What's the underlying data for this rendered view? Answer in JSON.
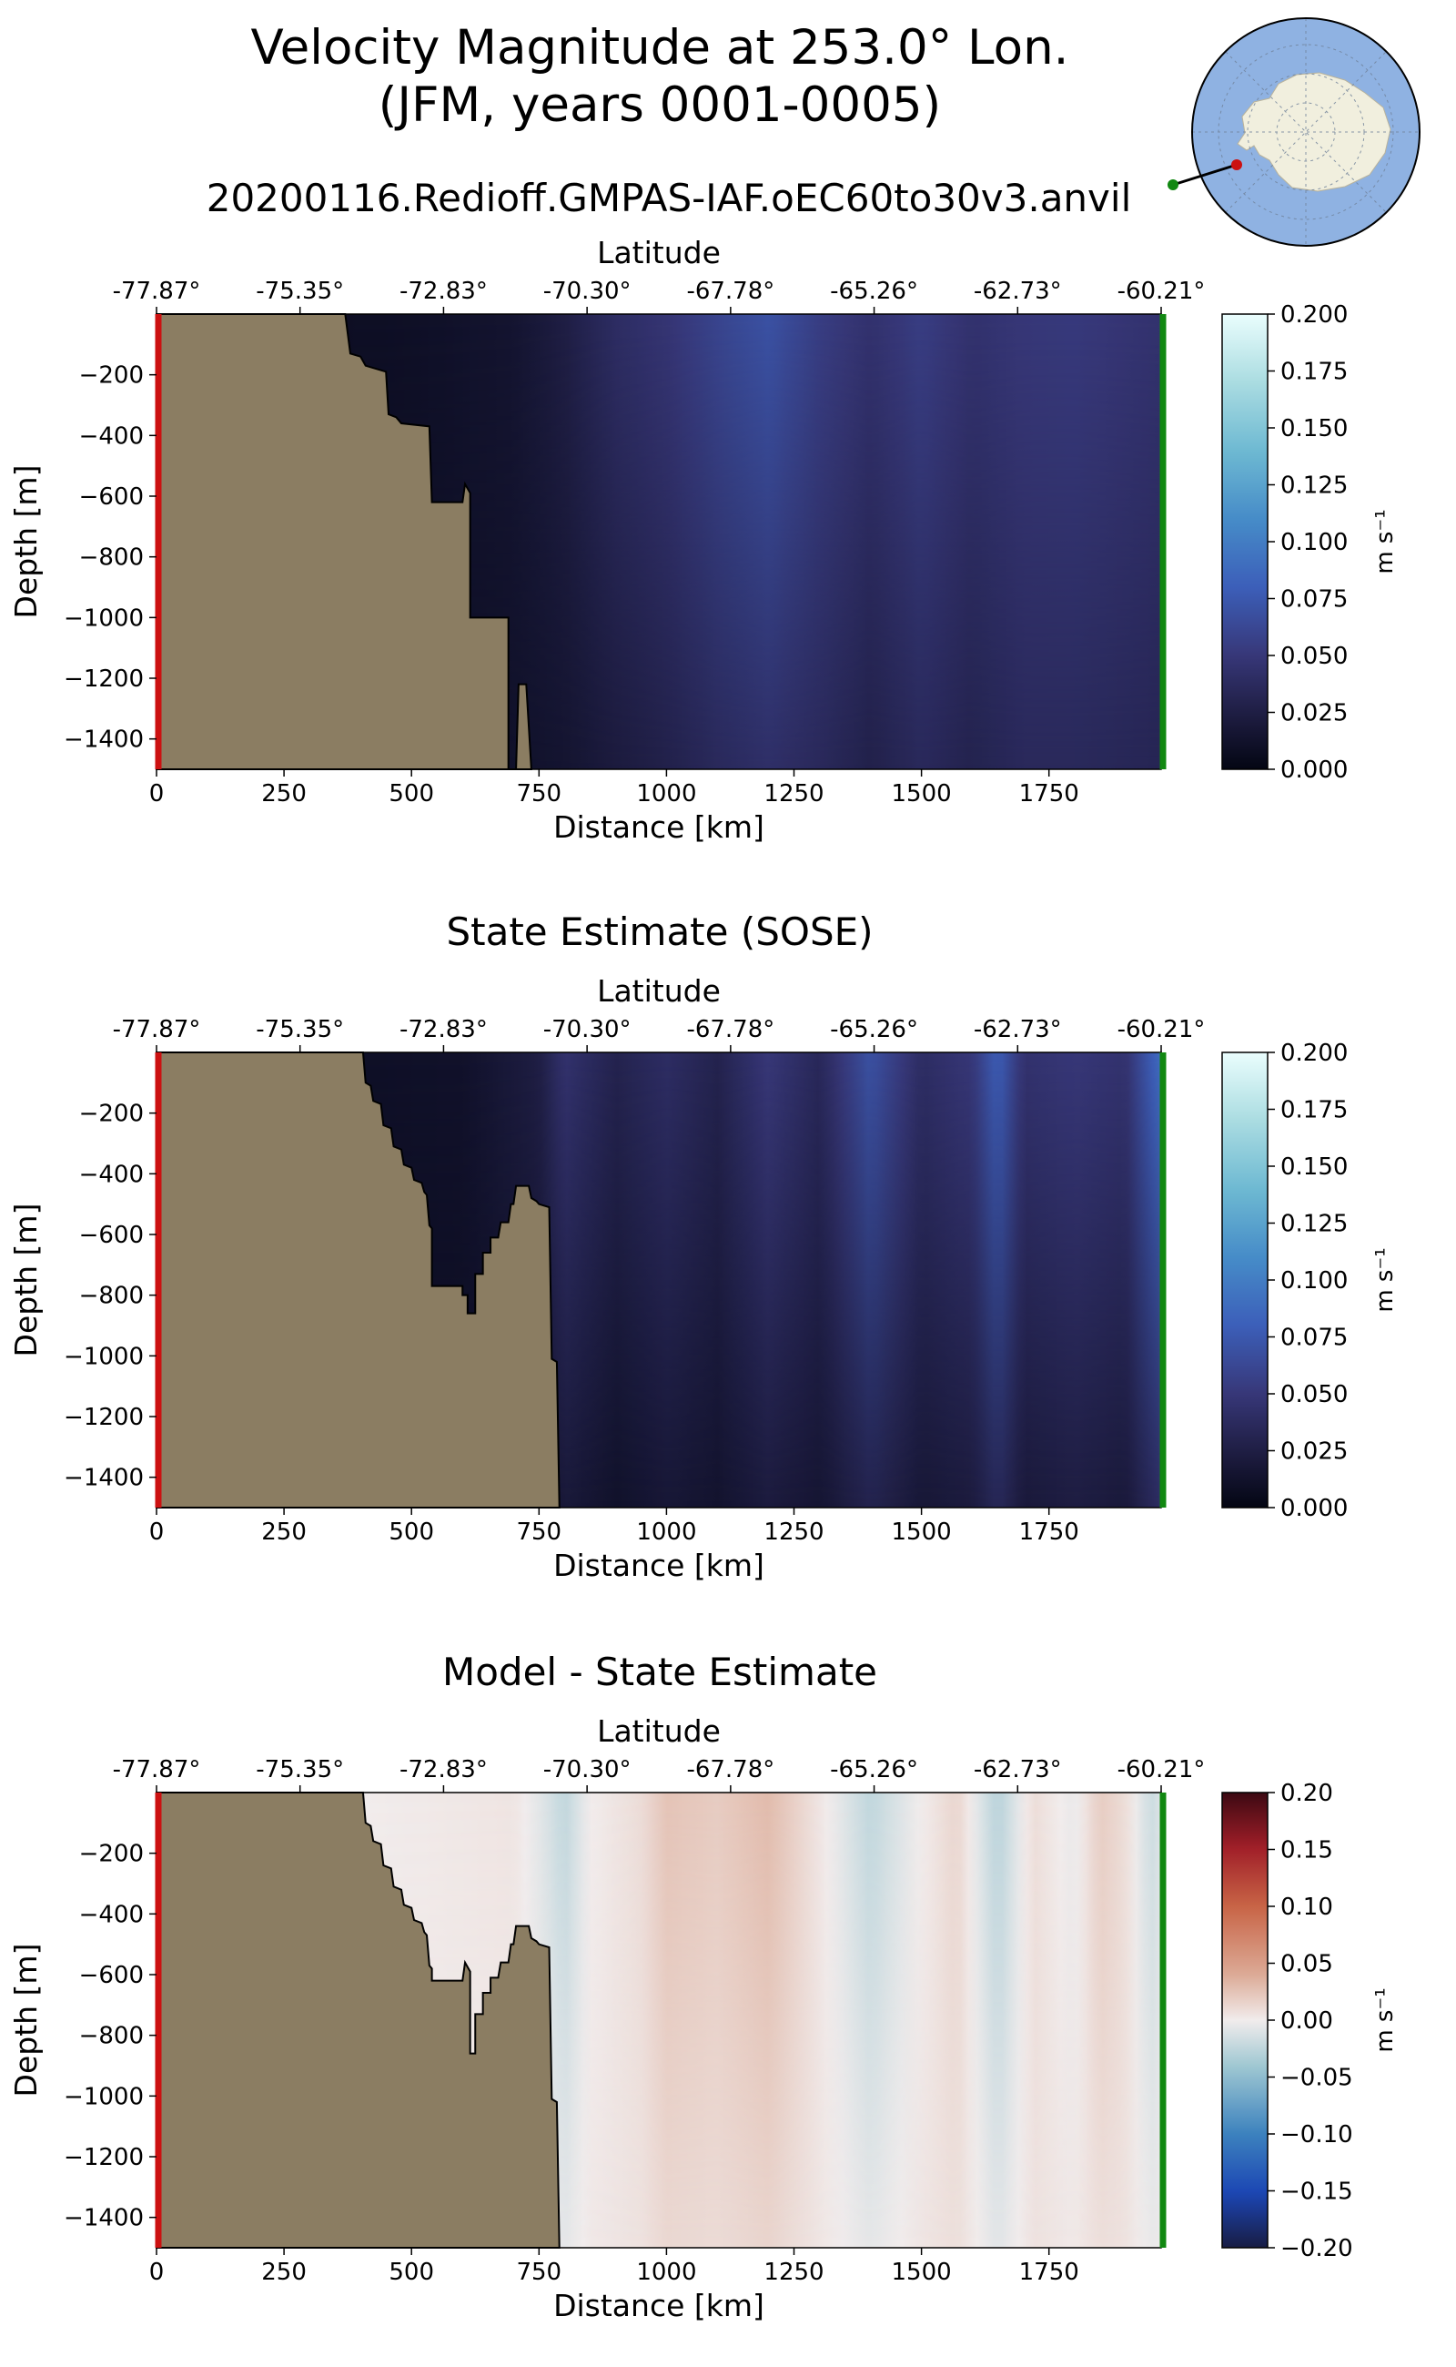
{
  "title_line1": "Velocity Magnitude at 253.0° Lon.",
  "title_line2": "(JFM, years 0001-0005)",
  "subtitle": "20200116.Redioff.GMPAS-IAF.oEC60to30v3.anvil",
  "colors": {
    "land": "#8b7d62",
    "start_marker": "#cc1111",
    "end_marker": "#118811",
    "inset_ocean": "#8fb2e2",
    "inset_land": "#f1efde"
  },
  "inset_map": {
    "projection": "south-polar-stereographic",
    "transect_start_marker": "red",
    "transect_end_marker": "green"
  },
  "chart_data": [
    {
      "type": "heatmap",
      "title": "",
      "xlabel": "Distance [km]",
      "ylabel": "Depth [m]",
      "top_xlabel": "Latitude",
      "xlim": [
        0,
        1970
      ],
      "ylim": [
        -1500,
        0
      ],
      "xticks": [
        0,
        250,
        500,
        750,
        1000,
        1250,
        1500,
        1750
      ],
      "yticks": [
        -200,
        -400,
        -600,
        -800,
        -1000,
        -1200,
        -1400
      ],
      "latitude_ticks": [
        "-77.87°",
        "-75.35°",
        "-72.83°",
        "-70.30°",
        "-67.78°",
        "-65.26°",
        "-62.73°",
        "-60.21°"
      ],
      "colorbar": {
        "label": "m s⁻¹",
        "range": [
          0.0,
          0.2
        ],
        "ticks": [
          "0.000",
          "0.025",
          "0.050",
          "0.075",
          "0.100",
          "0.125",
          "0.150",
          "0.175",
          "0.200"
        ],
        "colormap": "ice"
      },
      "bathymetry": [
        [
          370,
          0
        ],
        [
          380,
          -130
        ],
        [
          400,
          -140
        ],
        [
          410,
          -170
        ],
        [
          450,
          -190
        ],
        [
          455,
          -330
        ],
        [
          470,
          -340
        ],
        [
          480,
          -360
        ],
        [
          535,
          -370
        ],
        [
          540,
          -620
        ],
        [
          600,
          -620
        ],
        [
          605,
          -560
        ],
        [
          615,
          -590
        ],
        [
          615,
          -1000
        ],
        [
          690,
          -1000
        ],
        [
          690,
          -1500
        ],
        [
          705,
          -1500
        ],
        [
          710,
          -1220
        ],
        [
          725,
          -1220
        ],
        [
          735,
          -1500
        ]
      ],
      "velocity_profile": {
        "x": [
          0,
          500,
          700,
          800,
          900,
          1000,
          1100,
          1200,
          1300,
          1400,
          1500,
          1600,
          1700,
          1800,
          1900,
          1970
        ],
        "surface": [
          0.005,
          0.01,
          0.015,
          0.025,
          0.04,
          0.048,
          0.06,
          0.07,
          0.055,
          0.045,
          0.055,
          0.045,
          0.05,
          0.052,
          0.048,
          0.045
        ],
        "deep": [
          0.005,
          0.008,
          0.012,
          0.015,
          0.022,
          0.028,
          0.036,
          0.042,
          0.036,
          0.028,
          0.036,
          0.03,
          0.036,
          0.036,
          0.034,
          0.032
        ]
      }
    },
    {
      "type": "heatmap",
      "title": "State Estimate (SOSE)",
      "xlabel": "Distance [km]",
      "ylabel": "Depth [m]",
      "top_xlabel": "Latitude",
      "xlim": [
        0,
        1970
      ],
      "ylim": [
        -1500,
        0
      ],
      "xticks": [
        0,
        250,
        500,
        750,
        1000,
        1250,
        1500,
        1750
      ],
      "yticks": [
        -200,
        -400,
        -600,
        -800,
        -1000,
        -1200,
        -1400
      ],
      "latitude_ticks": [
        "-77.87°",
        "-75.35°",
        "-72.83°",
        "-70.30°",
        "-67.78°",
        "-65.26°",
        "-62.73°",
        "-60.21°"
      ],
      "colorbar": {
        "label": "m s⁻¹",
        "range": [
          0.0,
          0.2
        ],
        "ticks": [
          "0.000",
          "0.025",
          "0.050",
          "0.075",
          "0.100",
          "0.125",
          "0.150",
          "0.175",
          "0.200"
        ],
        "colormap": "ice"
      },
      "bathymetry": [
        [
          405,
          0
        ],
        [
          410,
          -100
        ],
        [
          420,
          -110
        ],
        [
          425,
          -160
        ],
        [
          440,
          -170
        ],
        [
          445,
          -240
        ],
        [
          460,
          -250
        ],
        [
          465,
          -310
        ],
        [
          480,
          -320
        ],
        [
          485,
          -370
        ],
        [
          500,
          -380
        ],
        [
          505,
          -420
        ],
        [
          520,
          -430
        ],
        [
          525,
          -460
        ],
        [
          530,
          -470
        ],
        [
          535,
          -570
        ],
        [
          540,
          -580
        ],
        [
          540,
          -770
        ],
        [
          600,
          -770
        ],
        [
          600,
          -800
        ],
        [
          610,
          -800
        ],
        [
          610,
          -860
        ],
        [
          625,
          -860
        ],
        [
          625,
          -730
        ],
        [
          640,
          -730
        ],
        [
          640,
          -660
        ],
        [
          655,
          -660
        ],
        [
          655,
          -610
        ],
        [
          670,
          -610
        ],
        [
          675,
          -560
        ],
        [
          690,
          -560
        ],
        [
          695,
          -500
        ],
        [
          700,
          -500
        ],
        [
          705,
          -440
        ],
        [
          730,
          -440
        ],
        [
          735,
          -480
        ],
        [
          745,
          -490
        ],
        [
          750,
          -500
        ],
        [
          770,
          -510
        ],
        [
          775,
          -1010
        ],
        [
          785,
          -1020
        ],
        [
          790,
          -1500
        ]
      ],
      "velocity_profile": {
        "x": [
          0,
          400,
          600,
          750,
          800,
          900,
          1000,
          1100,
          1200,
          1300,
          1400,
          1500,
          1600,
          1650,
          1700,
          1800,
          1900,
          1970
        ],
        "surface": [
          0.005,
          0.01,
          0.012,
          0.025,
          0.045,
          0.03,
          0.04,
          0.03,
          0.05,
          0.035,
          0.07,
          0.04,
          0.05,
          0.08,
          0.045,
          0.05,
          0.045,
          0.09
        ],
        "deep": [
          0.005,
          0.006,
          0.008,
          0.012,
          0.02,
          0.012,
          0.018,
          0.014,
          0.022,
          0.016,
          0.03,
          0.018,
          0.022,
          0.035,
          0.02,
          0.024,
          0.02,
          0.04
        ]
      }
    },
    {
      "type": "heatmap",
      "title": "Model - State Estimate",
      "xlabel": "Distance [km]",
      "ylabel": "Depth [m]",
      "top_xlabel": "Latitude",
      "xlim": [
        0,
        1970
      ],
      "ylim": [
        -1500,
        0
      ],
      "xticks": [
        0,
        250,
        500,
        750,
        1000,
        1250,
        1500,
        1750
      ],
      "yticks": [
        -200,
        -400,
        -600,
        -800,
        -1000,
        -1200,
        -1400
      ],
      "latitude_ticks": [
        "-77.87°",
        "-75.35°",
        "-72.83°",
        "-70.30°",
        "-67.78°",
        "-65.26°",
        "-62.73°",
        "-60.21°"
      ],
      "colorbar": {
        "label": "m s⁻¹",
        "range": [
          -0.2,
          0.2
        ],
        "ticks": [
          "−0.20",
          "−0.15",
          "−0.10",
          "−0.05",
          "0.00",
          "0.05",
          "0.10",
          "0.15",
          "0.20"
        ],
        "colormap": "balance"
      },
      "bathymetry": [
        [
          405,
          0
        ],
        [
          410,
          -100
        ],
        [
          420,
          -110
        ],
        [
          425,
          -160
        ],
        [
          440,
          -170
        ],
        [
          445,
          -240
        ],
        [
          460,
          -250
        ],
        [
          465,
          -310
        ],
        [
          480,
          -320
        ],
        [
          485,
          -370
        ],
        [
          500,
          -380
        ],
        [
          505,
          -420
        ],
        [
          520,
          -430
        ],
        [
          525,
          -460
        ],
        [
          530,
          -470
        ],
        [
          535,
          -570
        ],
        [
          540,
          -580
        ],
        [
          540,
          -620
        ],
        [
          600,
          -620
        ],
        [
          605,
          -560
        ],
        [
          615,
          -590
        ],
        [
          615,
          -860
        ],
        [
          625,
          -860
        ],
        [
          625,
          -730
        ],
        [
          640,
          -730
        ],
        [
          640,
          -660
        ],
        [
          655,
          -660
        ],
        [
          655,
          -610
        ],
        [
          670,
          -610
        ],
        [
          675,
          -560
        ],
        [
          690,
          -560
        ],
        [
          695,
          -500
        ],
        [
          700,
          -500
        ],
        [
          705,
          -440
        ],
        [
          730,
          -440
        ],
        [
          735,
          -480
        ],
        [
          745,
          -490
        ],
        [
          750,
          -500
        ],
        [
          770,
          -510
        ],
        [
          775,
          -1010
        ],
        [
          785,
          -1020
        ],
        [
          790,
          -1500
        ]
      ],
      "velocity_profile": {
        "x": [
          0,
          400,
          700,
          760,
          800,
          850,
          950,
          1000,
          1100,
          1200,
          1300,
          1400,
          1500,
          1570,
          1650,
          1720,
          1800,
          1850,
          1900,
          1950,
          1970
        ],
        "surface": [
          0.0,
          0.0,
          0.005,
          -0.01,
          -0.025,
          0.0,
          0.01,
          0.025,
          0.02,
          0.03,
          0.005,
          -0.025,
          0.0,
          0.015,
          -0.03,
          0.01,
          -0.005,
          0.02,
          0.01,
          -0.02,
          -0.01
        ],
        "deep": [
          0.0,
          0.0,
          0.002,
          -0.003,
          -0.006,
          0.002,
          0.006,
          0.012,
          0.01,
          0.014,
          0.004,
          -0.006,
          0.004,
          0.008,
          -0.008,
          0.006,
          0.002,
          0.008,
          0.006,
          -0.004,
          -0.002
        ]
      }
    }
  ]
}
